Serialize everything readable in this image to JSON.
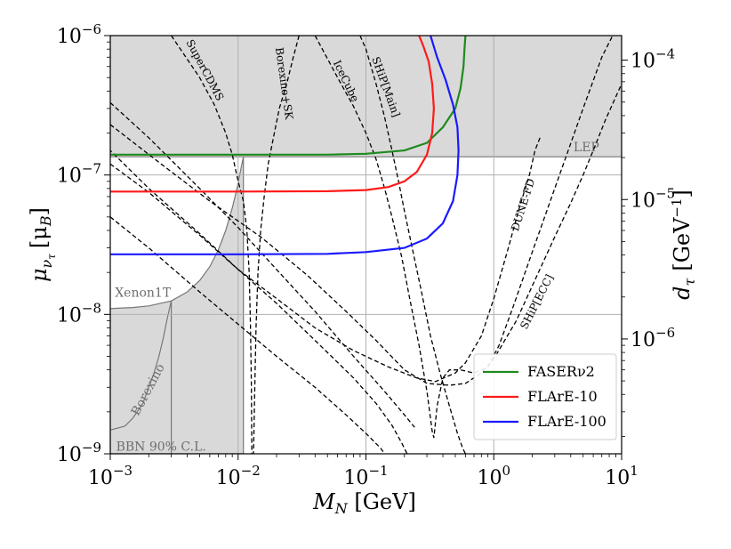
{
  "chart_data": {
    "type": "line",
    "xlabel": "M_N [GeV]",
    "xlabel_main": "M",
    "xlabel_sub": "N",
    "xlabel_unit": " [GeV]",
    "ylabel_main": "μ",
    "ylabel_sub": "ν",
    "ylabel_subsub": "τ",
    "ylabel_unit": "[μ",
    "ylabel_unit_sub": "B",
    "ylabel_unit_close": "]",
    "y2label_main": "d",
    "y2label_sub": "τ",
    "y2label_unit": "[GeV",
    "y2label_unit_sup": "−1",
    "y2label_close": "]",
    "xscale": "log",
    "yscale": "log",
    "xlim": [
      0.001,
      10
    ],
    "ylim": [
      1e-09,
      1e-06
    ],
    "y2lim": [
      1.5e-07,
      0.00015
    ],
    "grid": true,
    "x_ticks": [
      {
        "value": 0.001,
        "base": "10",
        "exp": "−3"
      },
      {
        "value": 0.01,
        "base": "10",
        "exp": "−2"
      },
      {
        "value": 0.1,
        "base": "10",
        "exp": "−1"
      },
      {
        "value": 1,
        "base": "10",
        "exp": "0"
      },
      {
        "value": 10,
        "base": "10",
        "exp": "1"
      }
    ],
    "y_ticks": [
      {
        "value": 1e-09,
        "base": "10",
        "exp": "−9"
      },
      {
        "value": 1e-08,
        "base": "10",
        "exp": "−8"
      },
      {
        "value": 1e-07,
        "base": "10",
        "exp": "−7"
      },
      {
        "value": 1e-06,
        "base": "10",
        "exp": "−6"
      }
    ],
    "y2_ticks": [
      {
        "value": 1e-06,
        "base": "10",
        "exp": "−6"
      },
      {
        "value": 1e-05,
        "base": "10",
        "exp": "−5"
      },
      {
        "value": 0.0001,
        "base": "10",
        "exp": "−4"
      }
    ],
    "excluded_regions": [
      {
        "name": "LEP",
        "color": "#d9d9d9",
        "edge": "#777777",
        "points": [
          [
            0.001,
            1.35e-07
          ],
          [
            10,
            1.35e-07
          ],
          [
            10,
            1e-06
          ],
          [
            0.001,
            1e-06
          ]
        ]
      },
      {
        "name": "Xenon1T",
        "color": "#d9d9d9",
        "edge": "#777777",
        "points": [
          [
            0.001,
            1e-09
          ],
          [
            0.001,
            1.1e-08
          ],
          [
            0.0015,
            1.12e-08
          ],
          [
            0.002,
            1.15e-08
          ],
          [
            0.003,
            1.25e-08
          ],
          [
            0.004,
            1.45e-08
          ],
          [
            0.005,
            1.75e-08
          ],
          [
            0.006,
            2.2e-08
          ],
          [
            0.007,
            2.9e-08
          ],
          [
            0.008,
            4e-08
          ],
          [
            0.009,
            5.8e-08
          ],
          [
            0.0098,
            8e-08
          ],
          [
            0.0105,
            1.1e-07
          ],
          [
            0.011,
            1.35e-07
          ],
          [
            0.011,
            1e-09
          ]
        ]
      },
      {
        "name": "Borexino",
        "color": "#d9d9d9",
        "edge": "#777777",
        "points": [
          [
            0.001,
            1e-09
          ],
          [
            0.001,
            1.48e-09
          ],
          [
            0.0013,
            1.58e-09
          ],
          [
            0.0015,
            1.8e-09
          ],
          [
            0.0018,
            2.3e-09
          ],
          [
            0.002,
            3e-09
          ],
          [
            0.0022,
            3.8e-09
          ],
          [
            0.0024,
            5e-09
          ],
          [
            0.0026,
            6.8e-09
          ],
          [
            0.0028,
            9.5e-09
          ],
          [
            0.003,
            1.25e-08
          ],
          [
            0.003,
            1e-09
          ]
        ]
      }
    ],
    "region_labels": [
      {
        "text": "LEP",
        "at": [
          5.3,
          1.48e-07
        ],
        "rotate": 0
      },
      {
        "text": "Xenon1T",
        "at": [
          0.0018,
          1.34e-08
        ],
        "rotate": 0
      },
      {
        "text": "Borexino",
        "at": [
          0.0021,
          2.8e-09
        ],
        "rotate": -62
      },
      {
        "text": "BBN 90% C.L.",
        "at": [
          0.0025,
          1.05e-09
        ],
        "rotate": 0
      }
    ],
    "series": [
      {
        "name": "FASERν2",
        "color": "#1f8a1f",
        "points": [
          [
            0.001,
            1.4e-07
          ],
          [
            0.01,
            1.4e-07
          ],
          [
            0.05,
            1.4e-07
          ],
          [
            0.1,
            1.42e-07
          ],
          [
            0.2,
            1.5e-07
          ],
          [
            0.3,
            1.7e-07
          ],
          [
            0.4,
            2.2e-07
          ],
          [
            0.5,
            3e-07
          ],
          [
            0.55,
            4.2e-07
          ],
          [
            0.58,
            6e-07
          ],
          [
            0.59,
            8e-07
          ],
          [
            0.6,
            1e-06
          ]
        ]
      },
      {
        "name": "FLArE-10",
        "color": "#ff1a1a",
        "points": [
          [
            0.001,
            7.6e-08
          ],
          [
            0.01,
            7.6e-08
          ],
          [
            0.05,
            7.65e-08
          ],
          [
            0.1,
            7.8e-08
          ],
          [
            0.15,
            8.2e-08
          ],
          [
            0.2,
            9e-08
          ],
          [
            0.25,
            1.05e-07
          ],
          [
            0.3,
            1.4e-07
          ],
          [
            0.33,
            2e-07
          ],
          [
            0.34,
            3e-07
          ],
          [
            0.33,
            4.5e-07
          ],
          [
            0.31,
            6.5e-07
          ],
          [
            0.28,
            8.5e-07
          ],
          [
            0.26,
            1e-06
          ]
        ]
      },
      {
        "name": "FLArE-100",
        "color": "#1a1aff",
        "points": [
          [
            0.001,
            2.7e-08
          ],
          [
            0.01,
            2.7e-08
          ],
          [
            0.05,
            2.72e-08
          ],
          [
            0.1,
            2.8e-08
          ],
          [
            0.2,
            3e-08
          ],
          [
            0.3,
            3.5e-08
          ],
          [
            0.4,
            4.5e-08
          ],
          [
            0.48,
            6.5e-08
          ],
          [
            0.52,
            1e-07
          ],
          [
            0.53,
            1.5e-07
          ],
          [
            0.52,
            2.2e-07
          ],
          [
            0.48,
            3.2e-07
          ],
          [
            0.42,
            4.8e-07
          ],
          [
            0.36,
            7e-07
          ],
          [
            0.32,
            1e-06
          ]
        ]
      }
    ],
    "projections": [
      {
        "name": "SuperCDMS",
        "points": [
          [
            0.003,
            1e-06
          ],
          [
            0.005,
            5e-07
          ],
          [
            0.0065,
            3.2e-07
          ],
          [
            0.008,
            2e-07
          ],
          [
            0.009,
            1.4e-07
          ],
          [
            0.01,
            9e-08
          ],
          [
            0.011,
            6.5e-08
          ],
          [
            0.0117,
            4e-08
          ],
          [
            0.0122,
            2e-08
          ],
          [
            0.0125,
            8e-09
          ],
          [
            0.0127,
            3e-09
          ],
          [
            0.0128,
            1e-09
          ]
        ]
      },
      {
        "name": "Borexino+SK",
        "points": [
          [
            0.03,
            1e-06
          ],
          [
            0.027,
            7e-07
          ],
          [
            0.024,
            4.5e-07
          ],
          [
            0.021,
            3e-07
          ],
          [
            0.019,
            1.9e-07
          ],
          [
            0.0172,
            1.2e-07
          ],
          [
            0.016,
            7e-08
          ],
          [
            0.015,
            4e-08
          ],
          [
            0.0143,
            2e-08
          ],
          [
            0.0138,
            8e-09
          ],
          [
            0.0135,
            3e-09
          ],
          [
            0.0132,
            1e-09
          ]
        ]
      },
      {
        "name": "IceCube",
        "points": [
          [
            0.04,
            1e-06
          ],
          [
            0.06,
            5e-07
          ],
          [
            0.08,
            3.1e-07
          ],
          [
            0.1,
            2e-07
          ],
          [
            0.12,
            1.3e-07
          ],
          [
            0.14,
            8e-08
          ],
          [
            0.16,
            5e-08
          ],
          [
            0.19,
            2.6e-08
          ],
          [
            0.22,
            1.3e-08
          ],
          [
            0.26,
            6e-09
          ],
          [
            0.3,
            2.8e-09
          ],
          [
            0.33,
            1.45e-09
          ],
          [
            0.34,
            1.3e-09
          ],
          [
            0.36,
            2.2e-09
          ],
          [
            0.4,
            3.5e-09
          ],
          [
            0.45,
            4e-09
          ],
          [
            0.55,
            4e-09
          ],
          [
            0.7,
            3.8e-09
          ],
          [
            0.9,
            4.2e-09
          ],
          [
            1.1,
            6e-09
          ],
          [
            1.4,
            1.1e-08
          ],
          [
            2,
            2.8e-08
          ],
          [
            3,
            8e-08
          ],
          [
            5,
            3e-07
          ],
          [
            7,
            7e-07
          ],
          [
            8.5,
            1e-06
          ]
        ]
      },
      {
        "name": "SHiP[Main]",
        "points": [
          [
            0.09,
            1e-06
          ],
          [
            0.1,
            8e-07
          ],
          [
            0.12,
            4.5e-07
          ],
          [
            0.14,
            2.6e-07
          ],
          [
            0.16,
            1.5e-07
          ],
          [
            0.18,
            9e-08
          ],
          [
            0.2,
            5.5e-08
          ],
          [
            0.23,
            3e-08
          ],
          [
            0.27,
            1.5e-08
          ],
          [
            0.32,
            7e-09
          ],
          [
            0.38,
            3.8e-09
          ],
          [
            0.45,
            2.2e-09
          ],
          [
            0.52,
            1.4e-09
          ],
          [
            0.57,
            1.1e-09
          ],
          [
            0.6,
            1e-09
          ]
        ]
      },
      {
        "name": "DUNE-FD",
        "points": [
          [
            2.3,
            1.85e-07
          ],
          [
            2.1,
            1.5e-07
          ],
          [
            1.9,
            1e-07
          ],
          [
            1.6,
            6e-08
          ],
          [
            1.3,
            3e-08
          ],
          [
            1.0,
            1.3e-08
          ],
          [
            0.8,
            7e-09
          ],
          [
            0.6,
            4.5e-09
          ],
          [
            0.5,
            3.8e-09
          ],
          [
            0.35,
            3.3e-09
          ],
          [
            0.25,
            3.5e-09
          ],
          [
            0.15,
            4.2e-09
          ],
          [
            0.08,
            5.5e-09
          ],
          [
            0.04,
            8e-09
          ],
          [
            0.02,
            1.3e-08
          ],
          [
            0.01,
            2.1e-08
          ],
          [
            0.005,
            3.8e-08
          ],
          [
            0.002,
            8e-08
          ],
          [
            0.001,
            1.5e-07
          ]
        ]
      },
      {
        "name": "SHiP[ECC]",
        "points": [
          [
            0.001,
            2.3e-07
          ],
          [
            0.0025,
            1.2e-07
          ],
          [
            0.006,
            6.5e-08
          ],
          [
            0.015,
            3.6e-08
          ],
          [
            0.035,
            1.9e-08
          ],
          [
            0.07,
            1.05e-08
          ],
          [
            0.12,
            6.5e-09
          ],
          [
            0.2,
            4e-09
          ],
          [
            0.3,
            3.2e-09
          ],
          [
            0.45,
            3.1e-09
          ],
          [
            0.6,
            3.2e-09
          ],
          [
            0.8,
            3.8e-09
          ],
          [
            1.0,
            4.8e-09
          ],
          [
            1.5,
            9e-09
          ],
          [
            2,
            1.6e-08
          ],
          [
            3,
            3.6e-08
          ],
          [
            4,
            6.3e-08
          ],
          [
            5,
            1e-07
          ],
          [
            6,
            1.5e-07
          ],
          [
            7.5,
            2.5e-07
          ],
          [
            10,
            4.5e-07
          ]
        ]
      },
      {
        "name": "",
        "points": [
          [
            0.001,
            3.3e-07
          ],
          [
            0.002,
            1.85e-07
          ],
          [
            0.005,
            8e-08
          ],
          [
            0.01,
            4.2e-08
          ],
          [
            0.02,
            2.1e-08
          ],
          [
            0.04,
            1.05e-08
          ],
          [
            0.08,
            5e-09
          ],
          [
            0.14,
            2.8e-09
          ],
          [
            0.2,
            1.9e-09
          ],
          [
            0.24,
            1.55e-09
          ]
        ]
      },
      {
        "name": "",
        "points": [
          [
            0.001,
            1.2e-07
          ],
          [
            0.002,
            7.5e-08
          ],
          [
            0.005,
            3.7e-08
          ],
          [
            0.01,
            2.1e-08
          ],
          [
            0.02,
            1.2e-08
          ],
          [
            0.04,
            6.5e-09
          ],
          [
            0.08,
            3.5e-09
          ],
          [
            0.12,
            2.3e-09
          ],
          [
            0.16,
            1.6e-09
          ],
          [
            0.19,
            1.2e-09
          ],
          [
            0.21,
            1e-09
          ]
        ]
      },
      {
        "name": "",
        "points": [
          [
            0.001,
            5e-08
          ],
          [
            0.002,
            3e-08
          ],
          [
            0.005,
            1.45e-08
          ],
          [
            0.01,
            8.5e-09
          ],
          [
            0.02,
            5e-09
          ],
          [
            0.04,
            3e-09
          ],
          [
            0.07,
            1.9e-09
          ],
          [
            0.1,
            1.4e-09
          ],
          [
            0.13,
            1.1e-09
          ],
          [
            0.14,
            1e-09
          ]
        ]
      }
    ],
    "curve_labels": [
      {
        "text": "SuperCDMS",
        "at": [
          0.0052,
          5.5e-07
        ],
        "rotate": 62
      },
      {
        "text": "Borexino+SK",
        "at": [
          0.0215,
          4.5e-07
        ],
        "rotate": 82
      },
      {
        "text": "IceCube",
        "at": [
          0.066,
          4.6e-07
        ],
        "rotate": 64
      },
      {
        "text": "SHiP[Main]",
        "at": [
          0.135,
          4.2e-07
        ],
        "rotate": 70
      },
      {
        "text": "DUNE-FD",
        "at": [
          1.8,
          6e-08
        ],
        "rotate": -72
      },
      {
        "text": "SHiP[ECC]",
        "at": [
          2.3,
          1.2e-08
        ],
        "rotate": -63
      }
    ],
    "legend": {
      "position": "lower-right",
      "entries": [
        {
          "label": "FASERν2",
          "color": "#1f8a1f"
        },
        {
          "label": "FLArE-10",
          "color": "#ff1a1a"
        },
        {
          "label": "FLArE-100",
          "color": "#1a1aff"
        }
      ]
    }
  }
}
